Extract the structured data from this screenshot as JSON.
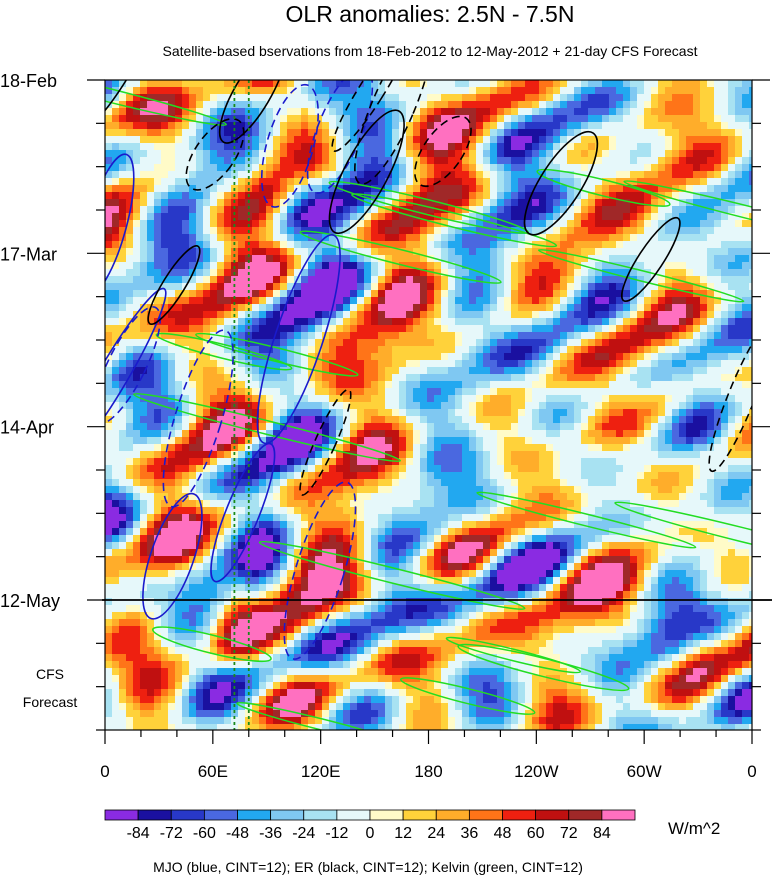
{
  "chart_data": {
    "type": "heatmap",
    "title": "OLR anomalies: 2.5N - 7.5N",
    "subtitle": "Satellite-based bservations from 18-Feb-2012 to 12-May-2012 + 21-day CFS Forecast",
    "x_tick_labels": [
      "0",
      "60E",
      "120E",
      "180",
      "120W",
      "60W",
      "0"
    ],
    "x_ticks_degE": [
      0,
      60,
      120,
      180,
      240,
      300,
      360
    ],
    "y_tick_labels": [
      "18-Feb",
      "17-Mar",
      "14-Apr",
      "12-May"
    ],
    "y_ticks_day": [
      0,
      28,
      56,
      84
    ],
    "y_range_days": [
      0,
      105
    ],
    "forecast_start_day": 84,
    "forecast_label": [
      "CFS",
      "Forecast"
    ],
    "colorbar": {
      "unit": "W/m^2",
      "levels": [
        -84,
        -72,
        -60,
        -48,
        -36,
        -24,
        -12,
        0,
        12,
        24,
        36,
        48,
        60,
        72,
        84
      ],
      "level_labels": [
        "-84",
        "-72",
        "-60",
        "-48",
        "-36",
        "-24",
        "-12",
        "0",
        "12",
        "24",
        "36",
        "48",
        "60",
        "72",
        "84"
      ],
      "colors": [
        "#8a2be2",
        "#1a10a0",
        "#2838c8",
        "#4a68e0",
        "#22a8f0",
        "#7fc8f2",
        "#a8e2f2",
        "#e6f8fa",
        "#fffbc8",
        "#ffd23a",
        "#ffad2a",
        "#ff7418",
        "#ee2010",
        "#c01010",
        "#a02828",
        "#ff70c0"
      ]
    },
    "contour_legend": "MJO (blue, CINT=12); ER (black, CINT=12); Kelvin (green, CINT=12)",
    "overlays": [
      {
        "name": "MJO",
        "color": "#1a1acc",
        "cint": 12
      },
      {
        "name": "ER",
        "color": "#000000",
        "cint": 12
      },
      {
        "name": "Kelvin",
        "color": "#22dd22",
        "cint": 12
      }
    ],
    "reference_lines_degE": [
      72,
      80
    ]
  }
}
